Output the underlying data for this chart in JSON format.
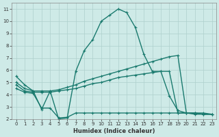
{
  "xlabel": "Humidex (Indice chaleur)",
  "bg_color": "#ceeae7",
  "grid_color": "#aed0cc",
  "line_color": "#1a7a6e",
  "xticks": [
    0,
    1,
    2,
    3,
    4,
    5,
    6,
    7,
    8,
    9,
    10,
    11,
    12,
    13,
    14,
    15,
    16,
    17,
    18,
    19,
    20,
    21,
    22,
    23
  ],
  "yticks": [
    2,
    3,
    4,
    5,
    6,
    7,
    8,
    9,
    10,
    11
  ],
  "curve1_x": [
    0,
    1,
    2,
    3,
    4,
    5,
    6,
    7,
    8,
    9,
    10,
    11,
    12,
    13,
    14,
    15,
    16,
    17,
    18,
    19,
    20,
    21,
    22,
    23
  ],
  "curve1_y": [
    5.5,
    4.8,
    4.3,
    2.8,
    4.3,
    2.0,
    2.1,
    5.9,
    7.6,
    8.5,
    10.0,
    10.5,
    11.0,
    10.7,
    9.5,
    7.3,
    5.9,
    5.9,
    3.9,
    2.7,
    2.5,
    2.4,
    2.4,
    2.4
  ],
  "curve2_x": [
    0,
    1,
    2,
    3,
    4,
    5,
    6,
    7,
    8,
    9,
    10,
    11,
    12,
    13,
    14,
    15,
    16,
    17,
    18,
    19,
    20,
    21,
    22,
    23
  ],
  "curve2_y": [
    5.0,
    4.5,
    4.3,
    4.3,
    4.3,
    4.4,
    4.6,
    4.8,
    5.1,
    5.3,
    5.5,
    5.7,
    5.9,
    6.1,
    6.3,
    6.5,
    6.7,
    6.9,
    7.1,
    7.2,
    2.5,
    2.5,
    2.4,
    2.4
  ],
  "curve3_x": [
    0,
    1,
    2,
    3,
    4,
    5,
    6,
    7,
    8,
    9,
    10,
    11,
    12,
    13,
    14,
    15,
    16,
    17,
    18,
    19,
    20,
    21,
    22,
    23
  ],
  "curve3_y": [
    4.8,
    4.3,
    4.2,
    4.2,
    4.2,
    4.3,
    4.4,
    4.5,
    4.7,
    4.9,
    5.0,
    5.2,
    5.4,
    5.5,
    5.6,
    5.7,
    5.8,
    5.9,
    5.9,
    2.5,
    2.5,
    2.5,
    2.4,
    2.4
  ],
  "curve4_x": [
    0,
    1,
    2,
    3,
    4,
    5,
    6,
    7,
    8,
    9,
    10,
    11,
    12,
    13,
    14,
    15,
    16,
    17,
    18,
    19,
    20,
    21,
    22,
    23
  ],
  "curve4_y": [
    4.5,
    4.2,
    4.1,
    2.9,
    2.9,
    2.1,
    2.15,
    2.5,
    2.5,
    2.5,
    2.5,
    2.5,
    2.5,
    2.5,
    2.5,
    2.5,
    2.5,
    2.5,
    2.5,
    2.5,
    2.5,
    2.5,
    2.5,
    2.4
  ]
}
